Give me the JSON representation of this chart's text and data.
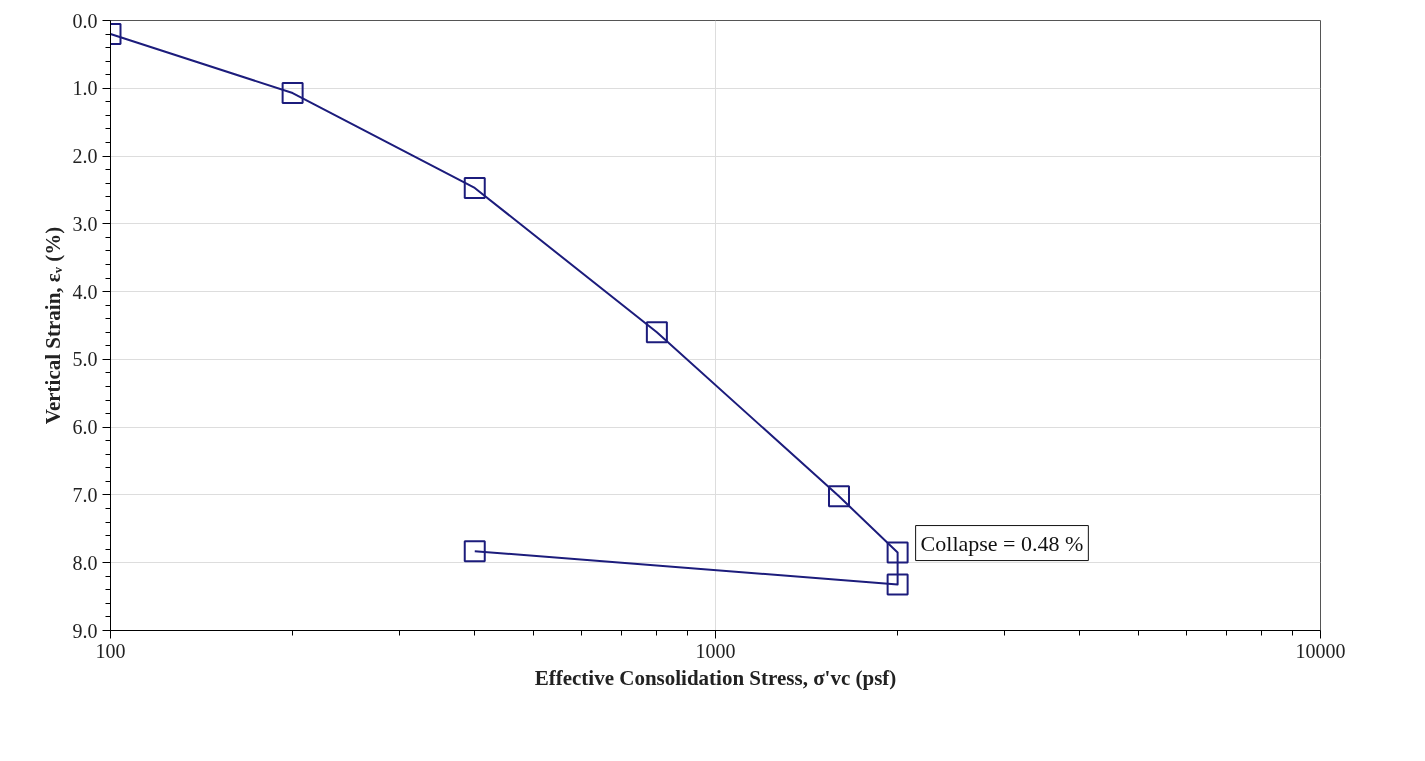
{
  "chart_data": {
    "type": "line",
    "xlabel": "Effective Consolidation Stress, σ'vc (psf)",
    "ylabel": "Vertical Strain, εᵥ (%)",
    "x": [
      100,
      200,
      400,
      800,
      1600,
      2000,
      2000,
      400
    ],
    "series": [
      {
        "color": "#1c1c7c",
        "values": [
          0.2,
          1.07,
          2.47,
          4.6,
          7.02,
          7.85,
          8.32,
          7.83
        ]
      }
    ],
    "log": "x",
    "xlim": [
      100,
      10000
    ],
    "xticks": [
      100,
      1000,
      10000
    ],
    "ylim": [
      9,
      0
    ],
    "yticks": [
      {
        "value": 0,
        "label": "0.0"
      },
      {
        "value": 1,
        "label": "1.0"
      },
      {
        "value": 2,
        "label": "2.0"
      },
      {
        "value": 3,
        "label": "3.0"
      },
      {
        "value": 4,
        "label": "4.0"
      },
      {
        "value": 5,
        "label": "5.0"
      },
      {
        "value": 6,
        "label": "6.0"
      },
      {
        "value": 7,
        "label": "7.0"
      },
      {
        "value": 8,
        "label": "8.0"
      },
      {
        "value": 9,
        "label": "9.0"
      }
    ],
    "grid": true,
    "marker": "square",
    "line_style": "solid",
    "annotations": [
      {
        "text": "Collapse = 0.48 %",
        "x": 2000,
        "y": 7.85
      }
    ]
  }
}
